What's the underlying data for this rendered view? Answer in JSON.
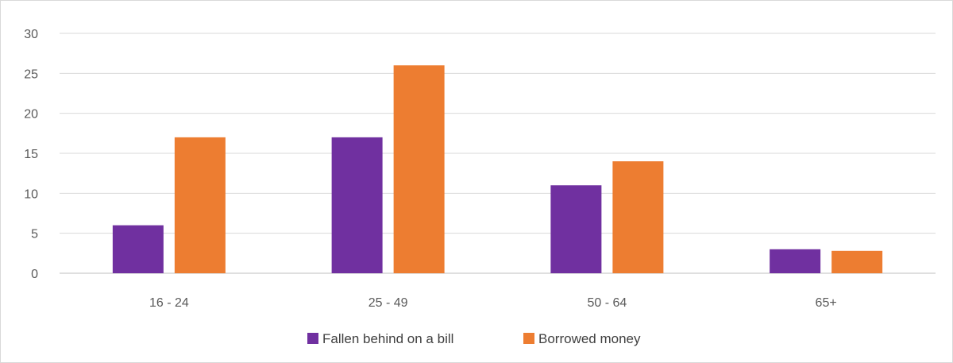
{
  "chart_data": {
    "type": "bar",
    "title": "",
    "xlabel": "",
    "ylabel": "",
    "categories": [
      "16 - 24",
      "25 - 49",
      "50 - 64",
      "65+"
    ],
    "series": [
      {
        "name": "Fallen behind on a bill",
        "values": [
          6,
          17,
          11,
          3
        ],
        "color": "#7030a0"
      },
      {
        "name": "Borrowed money",
        "values": [
          17,
          26,
          14,
          2.8
        ],
        "color": "#ed7d31"
      }
    ],
    "ylim": [
      0,
      30
    ],
    "yticks": [
      "0",
      "5",
      "10",
      "15",
      "20",
      "25",
      "30"
    ],
    "grid": true,
    "legend_position": "bottom"
  }
}
